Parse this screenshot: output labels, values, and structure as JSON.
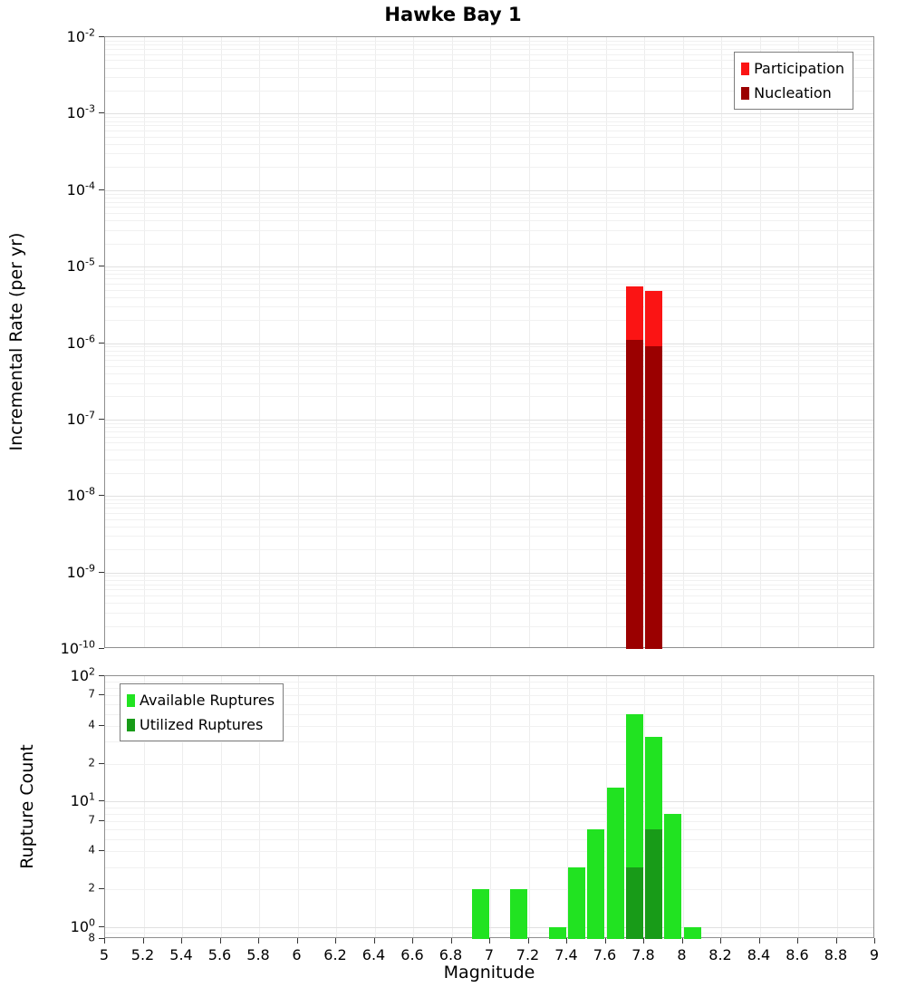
{
  "title": "Hawke Bay 1",
  "xlabel": "Magnitude",
  "chart_data": [
    {
      "type": "bar",
      "name": "incremental-rate-plot",
      "ylabel": "Incremental Rate (per yr)",
      "yscale": "log",
      "xlim": [
        5,
        9
      ],
      "ylim": [
        1e-10,
        0.01
      ],
      "bar_width": 0.09,
      "grid": true,
      "legend_position": "top-right",
      "series": [
        {
          "name": "Participation",
          "color": "#fb1414",
          "x": [
            7.75,
            7.85
          ],
          "y": [
            5.5e-06,
            4.8e-06
          ]
        },
        {
          "name": "Nucleation",
          "color": "#9b0000",
          "x": [
            7.75,
            7.85
          ],
          "y": [
            1.1e-06,
            9e-07
          ]
        }
      ],
      "y_ticks": [
        {
          "v": 0.01,
          "base": "10",
          "exp": "-2"
        },
        {
          "v": 0.001,
          "base": "10",
          "exp": "-3"
        },
        {
          "v": 0.0001,
          "base": "10",
          "exp": "-4"
        },
        {
          "v": 1e-05,
          "base": "10",
          "exp": "-5"
        },
        {
          "v": 1e-06,
          "base": "10",
          "exp": "-6"
        },
        {
          "v": 1e-07,
          "base": "10",
          "exp": "-7"
        },
        {
          "v": 1e-08,
          "base": "10",
          "exp": "-8"
        },
        {
          "v": 1e-09,
          "base": "10",
          "exp": "-9"
        },
        {
          "v": 1e-10,
          "base": "10",
          "exp": "-10"
        }
      ],
      "x_tick_values": [
        5,
        5.2,
        5.4,
        5.6,
        5.8,
        6,
        6.2,
        6.4,
        6.6,
        6.8,
        7,
        7.2,
        7.4,
        7.6,
        7.8,
        8,
        8.2,
        8.4,
        8.6,
        8.8,
        9
      ],
      "x_tick_labels": null
    },
    {
      "type": "bar",
      "name": "rupture-count-plot",
      "ylabel": "Rupture Count",
      "yscale": "log",
      "xlim": [
        5,
        9
      ],
      "ylim": [
        0.8,
        100
      ],
      "bar_width": 0.09,
      "grid": true,
      "legend_position": "top-left",
      "series": [
        {
          "name": "Available Ruptures",
          "color": "#21e321",
          "x": [
            6.95,
            7.15,
            7.35,
            7.45,
            7.55,
            7.65,
            7.75,
            7.85,
            7.95,
            8.05
          ],
          "y": [
            2,
            2,
            1,
            3,
            6,
            13,
            50,
            33,
            8,
            1
          ]
        },
        {
          "name": "Utilized Ruptures",
          "color": "#189b18",
          "x": [
            7.75,
            7.85
          ],
          "y": [
            3,
            6
          ]
        }
      ],
      "y_ticks": [
        {
          "v": 100,
          "base": "10",
          "exp": "2"
        },
        {
          "v": 70,
          "label": "7",
          "minor": true
        },
        {
          "v": 40,
          "label": "4",
          "minor": true
        },
        {
          "v": 20,
          "label": "2",
          "minor": true
        },
        {
          "v": 10,
          "base": "10",
          "exp": "1"
        },
        {
          "v": 7,
          "label": "7",
          "minor": true
        },
        {
          "v": 4,
          "label": "4",
          "minor": true
        },
        {
          "v": 2,
          "label": "2",
          "minor": true
        },
        {
          "v": 1,
          "base": "10",
          "exp": "0"
        },
        {
          "v": 0.8,
          "label": "8",
          "minor": true
        }
      ],
      "x_tick_values": [
        5,
        5.2,
        5.4,
        5.6,
        5.8,
        6,
        6.2,
        6.4,
        6.6,
        6.8,
        7,
        7.2,
        7.4,
        7.6,
        7.8,
        8,
        8.2,
        8.4,
        8.6,
        8.8,
        9
      ],
      "x_tick_labels": [
        "5",
        "5.2",
        "5.4",
        "5.6",
        "5.8",
        "6",
        "6.2",
        "6.4",
        "6.6",
        "6.8",
        "7",
        "7.2",
        "7.4",
        "7.6",
        "7.8",
        "8",
        "8.2",
        "8.4",
        "8.6",
        "8.8",
        "9"
      ]
    }
  ]
}
